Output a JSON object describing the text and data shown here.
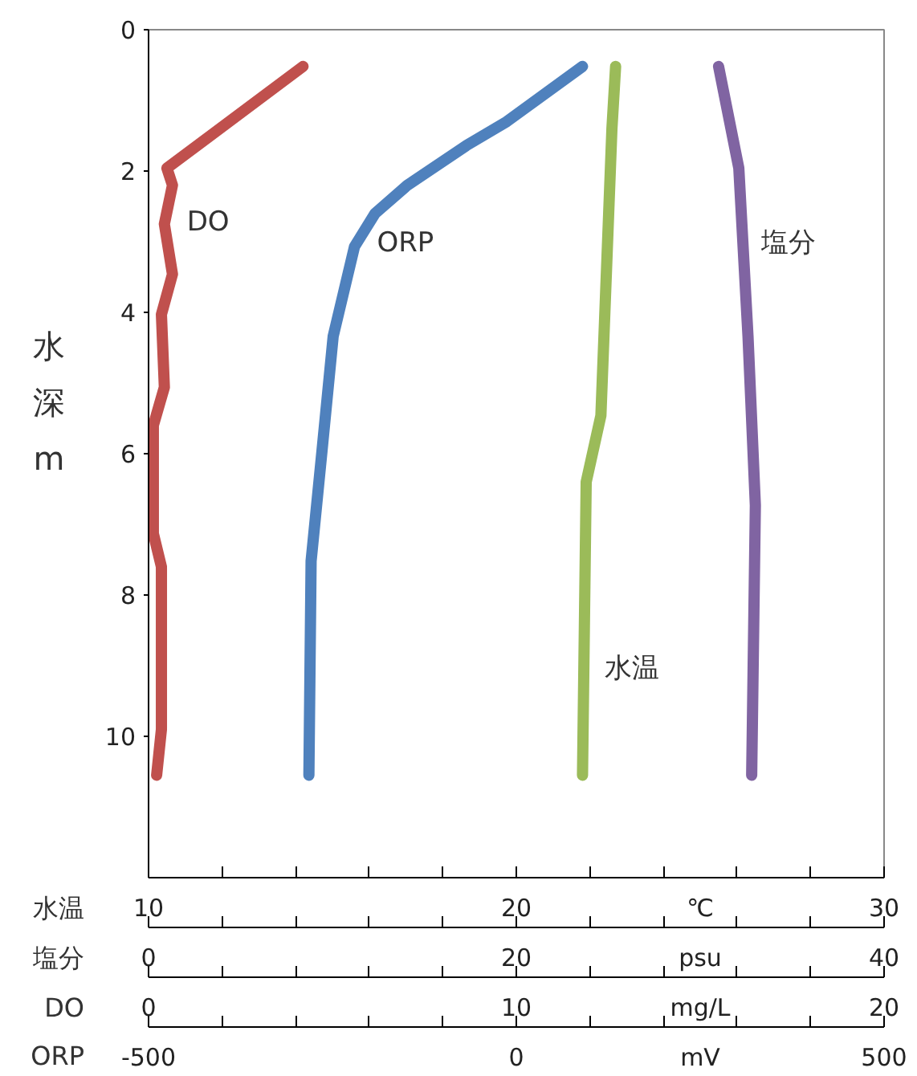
{
  "chart_data": [
    {
      "type": "line",
      "ylabel": "水深m",
      "ylim": [
        12,
        0
      ],
      "yticks": [
        0,
        2,
        4,
        6,
        8,
        10
      ],
      "xlabel": "水温",
      "xlim": [
        10,
        30
      ],
      "xticks": [
        10,
        {
          "value": 12,
          "label": null
        },
        {
          "value": 14,
          "label": null
        },
        {
          "value": 16,
          "label": null
        },
        {
          "value": 18,
          "label": null
        },
        20,
        {
          "value": 22,
          "label": null
        },
        {
          "value": 24,
          "label": null
        },
        {
          "value": 25,
          "label": "℃"
        },
        {
          "value": 26,
          "label": null
        },
        {
          "value": 28,
          "label": null
        },
        30
      ],
      "x2label": "塩分",
      "x2lim": [
        0,
        40
      ],
      "x2ticks": [
        0,
        {
          "value": 4,
          "label": null
        },
        {
          "value": 8,
          "label": null
        },
        {
          "value": 12,
          "label": null
        },
        {
          "value": 16,
          "label": null
        },
        20,
        {
          "value": 24,
          "label": null
        },
        {
          "value": 28,
          "label": null
        },
        {
          "value": 30,
          "label": "psu"
        },
        {
          "value": 32,
          "label": null
        },
        {
          "value": 36,
          "label": null
        },
        40
      ],
      "series": [
        {
          "name": "水温",
          "color": "#9bbb59",
          "x": [
            22.7,
            22.6,
            22.3,
            21.9,
            21.8
          ],
          "values": [
            0.52,
            1.4,
            5.46,
            6.4,
            10.55
          ]
        },
        {
          "name": "塩分",
          "color": "#8064a2",
          "axis": "x2",
          "x": [
            31.0,
            32.1,
            32.6,
            33.0,
            32.8
          ],
          "values": [
            0.52,
            1.96,
            4.34,
            6.73,
            10.55
          ]
        }
      ]
    },
    {
      "type": "line",
      "ylim": [
        12,
        0
      ],
      "yticks": [
        0,
        2,
        4,
        6,
        8,
        10
      ],
      "tick_labels": "x",
      "xlabel": "DO",
      "xlim": [
        0,
        20
      ],
      "xticks": [
        0,
        {
          "value": 2,
          "label": null
        },
        {
          "value": 4,
          "label": null
        },
        {
          "value": 6,
          "label": null
        },
        {
          "value": 8,
          "label": null
        },
        10,
        {
          "value": 12,
          "label": null
        },
        {
          "value": 14,
          "label": null
        },
        {
          "value": 15,
          "label": "mg/L"
        },
        {
          "value": 16,
          "label": null
        },
        {
          "value": 18,
          "label": null
        },
        20
      ],
      "x2label": "ORP",
      "x2lim": [
        -500,
        500
      ],
      "x2ticks": [
        -500,
        {
          "value": -400,
          "label": null
        },
        {
          "value": -300,
          "label": null
        },
        {
          "value": -200,
          "label": null
        },
        {
          "value": -100,
          "label": null
        },
        0,
        {
          "value": 100,
          "label": null
        },
        {
          "value": 200,
          "label": null
        },
        {
          "value": 250,
          "label": "mV"
        },
        {
          "value": 300,
          "label": null
        },
        {
          "value": 400,
          "label": null
        },
        500
      ],
      "series": [
        {
          "name": "DO",
          "color": "#c0504d",
          "x": [
            4.2,
            0.5,
            0.65,
            0.43,
            0.65,
            0.35,
            0.43,
            0.13,
            0.13,
            0.35,
            0.35,
            0.22
          ],
          "values": [
            0.52,
            1.96,
            2.2,
            2.75,
            3.46,
            4.03,
            5.06,
            5.6,
            7.13,
            7.6,
            9.9,
            10.55
          ]
        },
        {
          "name": "ORP",
          "color": "#4f81bd",
          "axis": "x2",
          "x": [
            90,
            -13,
            -68,
            -148,
            -192,
            -220,
            -249,
            -264,
            -279,
            -282
          ],
          "values": [
            0.52,
            1.3,
            1.64,
            2.2,
            2.6,
            3.07,
            4.34,
            5.94,
            7.52,
            10.55
          ]
        }
      ]
    }
  ]
}
